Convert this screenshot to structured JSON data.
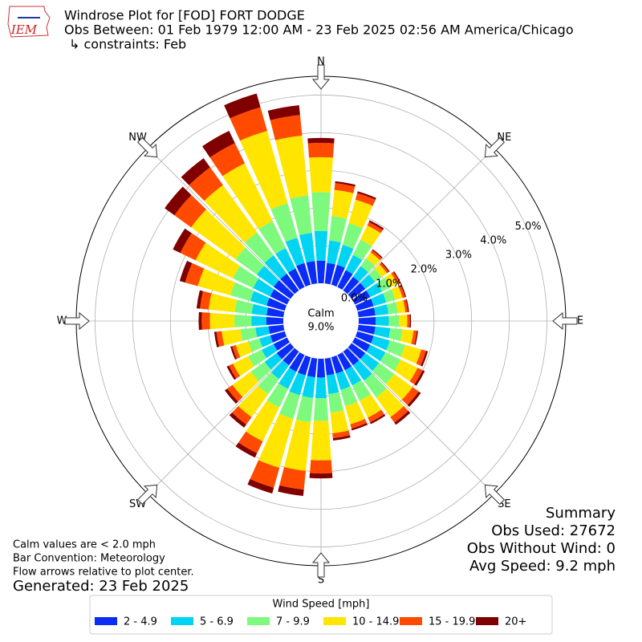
{
  "logo_text": "IEM",
  "chart_data": {
    "type": "windrose",
    "title": "Windrose Plot for [FOD] FORT DODGE",
    "subtitle": "Obs Between: 01 Feb 1979 12:00 AM - 23 Feb 2025 02:56 AM America/Chicago",
    "constraints": "↳ constraints: Feb",
    "compass_labels": [
      "N",
      "NE",
      "E",
      "SE",
      "S",
      "SW",
      "W",
      "NW"
    ],
    "calm": {
      "label": "Calm",
      "value": 9.0,
      "value_label": "9.0%"
    },
    "directions": [
      0,
      10,
      20,
      30,
      40,
      50,
      60,
      70,
      80,
      90,
      100,
      110,
      120,
      130,
      140,
      150,
      160,
      170,
      180,
      190,
      200,
      210,
      220,
      230,
      240,
      250,
      260,
      270,
      280,
      290,
      300,
      310,
      320,
      330,
      340,
      350
    ],
    "ylim": [
      0,
      5.5
    ],
    "yticks": [
      {
        "value": 0,
        "label": "0.0%"
      },
      {
        "value": 1,
        "label": "1.0%"
      },
      {
        "value": 2,
        "label": "2.0%"
      },
      {
        "value": 3,
        "label": "3.0%"
      },
      {
        "value": 4,
        "label": "4.0%"
      },
      {
        "value": 5,
        "label": "5.0%"
      }
    ],
    "grid": true,
    "legend_title": "Wind Speed [mph]",
    "series": [
      {
        "name": "2 - 4.9",
        "color": "#0a2cf5",
        "values": [
          0.6,
          0.55,
          0.55,
          0.5,
          0.45,
          0.45,
          0.45,
          0.45,
          0.45,
          0.45,
          0.45,
          0.45,
          0.45,
          0.45,
          0.45,
          0.45,
          0.45,
          0.45,
          0.5,
          0.5,
          0.5,
          0.5,
          0.45,
          0.45,
          0.4,
          0.4,
          0.4,
          0.45,
          0.45,
          0.5,
          0.5,
          0.55,
          0.55,
          0.55,
          0.6,
          0.6
        ]
      },
      {
        "name": "5 - 6.9",
        "color": "#00d4f2",
        "values": [
          0.79,
          0.6,
          0.55,
          0.45,
          0.35,
          0.32,
          0.35,
          0.35,
          0.35,
          0.35,
          0.4,
          0.45,
          0.45,
          0.45,
          0.5,
          0.45,
          0.45,
          0.5,
          0.55,
          0.55,
          0.55,
          0.5,
          0.45,
          0.4,
          0.35,
          0.3,
          0.35,
          0.4,
          0.4,
          0.45,
          0.5,
          0.55,
          0.6,
          0.6,
          0.7,
          0.75
        ]
      },
      {
        "name": "7 - 9.9",
        "color": "#7dfa7d",
        "values": [
          1.03,
          0.65,
          0.6,
          0.45,
          0.25,
          0.22,
          0.25,
          0.25,
          0.25,
          0.27,
          0.32,
          0.42,
          0.45,
          0.5,
          0.55,
          0.45,
          0.45,
          0.5,
          0.6,
          0.65,
          0.65,
          0.55,
          0.5,
          0.45,
          0.4,
          0.3,
          0.4,
          0.45,
          0.45,
          0.55,
          0.6,
          0.7,
          0.75,
          0.8,
          0.95,
          1.0
        ]
      },
      {
        "name": "10 - 14.9",
        "color": "#ffe500",
        "values": [
          0.93,
          0.7,
          0.65,
          0.42,
          0.2,
          0.17,
          0.2,
          0.2,
          0.2,
          0.22,
          0.3,
          0.45,
          0.5,
          0.6,
          0.65,
          0.5,
          0.5,
          0.55,
          1.05,
          1.3,
          1.35,
          1.0,
          0.75,
          0.6,
          0.45,
          0.35,
          0.5,
          0.65,
          0.7,
          0.9,
          1.1,
          1.45,
          1.55,
          1.7,
          2.0,
          1.6
        ]
      },
      {
        "name": "15 - 19.9",
        "color": "#ff4a00",
        "values": [
          0.38,
          0.18,
          0.18,
          0.1,
          0.07,
          0.06,
          0.07,
          0.07,
          0.07,
          0.07,
          0.09,
          0.13,
          0.15,
          0.2,
          0.18,
          0.14,
          0.12,
          0.13,
          0.35,
          0.5,
          0.55,
          0.35,
          0.24,
          0.17,
          0.12,
          0.1,
          0.14,
          0.22,
          0.23,
          0.35,
          0.45,
          0.55,
          0.58,
          0.6,
          0.65,
          0.55
        ]
      },
      {
        "name": "20+",
        "color": "#800000",
        "values": [
          0.13,
          0.05,
          0.05,
          0.05,
          0.03,
          0.03,
          0.03,
          0.03,
          0.03,
          0.03,
          0.03,
          0.05,
          0.06,
          0.07,
          0.07,
          0.05,
          0.05,
          0.06,
          0.13,
          0.17,
          0.16,
          0.13,
          0.1,
          0.08,
          0.06,
          0.05,
          0.06,
          0.08,
          0.09,
          0.15,
          0.22,
          0.32,
          0.3,
          0.36,
          0.38,
          0.26
        ]
      }
    ]
  },
  "notes": [
    "Calm values are < 2.0 mph",
    "Bar Convention: Meteorology",
    "Flow arrows relative to plot center."
  ],
  "generated": "Generated: 23 Feb 2025",
  "summary": [
    "Summary",
    "Obs Used: 27672",
    "Obs Without Wind: 0",
    "Avg Speed: 9.2 mph"
  ]
}
